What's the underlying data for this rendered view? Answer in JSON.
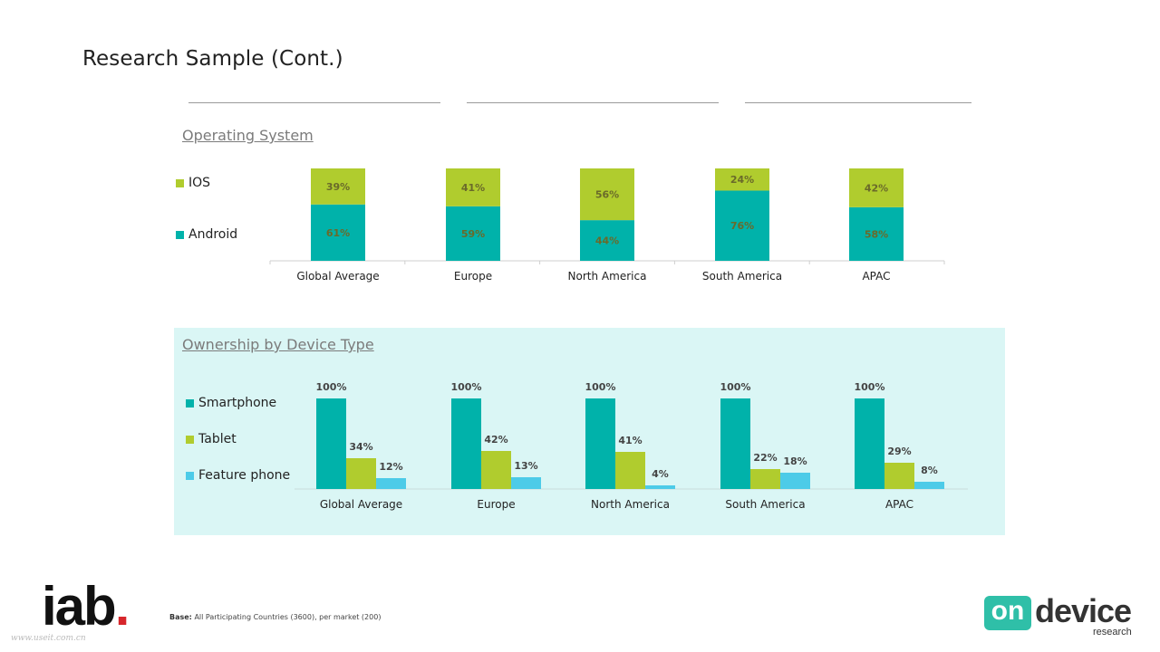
{
  "page": {
    "title": "Research Sample (Cont.)"
  },
  "os_section": {
    "heading": "Operating System"
  },
  "device_section": {
    "heading": "Ownership by Device Type"
  },
  "footnote": {
    "label": "Base:",
    "text": "All Participating Countries (3600), per market (200)"
  },
  "logos": {
    "iab": "iab",
    "ondevice_box": "on",
    "ondevice_word": "device",
    "ondevice_sub": "research",
    "watermark": "www.useit.com.cn"
  },
  "colors": {
    "android": "#00b2aa",
    "ios": "#b0cc2e",
    "smartphone": "#00b2aa",
    "tablet": "#b0cc2e",
    "feature_phone": "#4dcbe8",
    "panel_bg": "#daf6f5"
  },
  "chart_data": [
    {
      "type": "bar",
      "stacked": true,
      "percent": true,
      "categories": [
        "Global Average",
        "Europe",
        "North America",
        "South America",
        "APAC"
      ],
      "series": [
        {
          "name": "Android",
          "values": [
            61,
            59,
            44,
            76,
            58
          ],
          "labels": [
            "61%",
            "59%",
            "44%",
            "76%",
            "58%"
          ]
        },
        {
          "name": "IOS",
          "values": [
            39,
            41,
            56,
            24,
            42
          ],
          "labels": [
            "39%",
            "41%",
            "56%",
            "24%",
            "42%"
          ]
        }
      ],
      "ylim": [
        0,
        100
      ],
      "legend": "left"
    },
    {
      "type": "bar",
      "stacked": false,
      "percent": true,
      "categories": [
        "Global Average",
        "Europe",
        "North America",
        "South America",
        "APAC"
      ],
      "series": [
        {
          "name": "Smartphone",
          "values": [
            100,
            100,
            100,
            100,
            100
          ],
          "labels": [
            "100%",
            "100%",
            "100%",
            "100%",
            "100%"
          ]
        },
        {
          "name": "Tablet",
          "values": [
            34,
            42,
            41,
            22,
            29
          ],
          "labels": [
            "34%",
            "42%",
            "41%",
            "22%",
            "29%"
          ]
        },
        {
          "name": "Feature phone",
          "values": [
            12,
            13,
            4,
            18,
            8
          ],
          "labels": [
            "12%",
            "13%",
            "4%",
            "18%",
            "8%"
          ]
        }
      ],
      "ylim": [
        0,
        100
      ],
      "legend": "left"
    }
  ]
}
